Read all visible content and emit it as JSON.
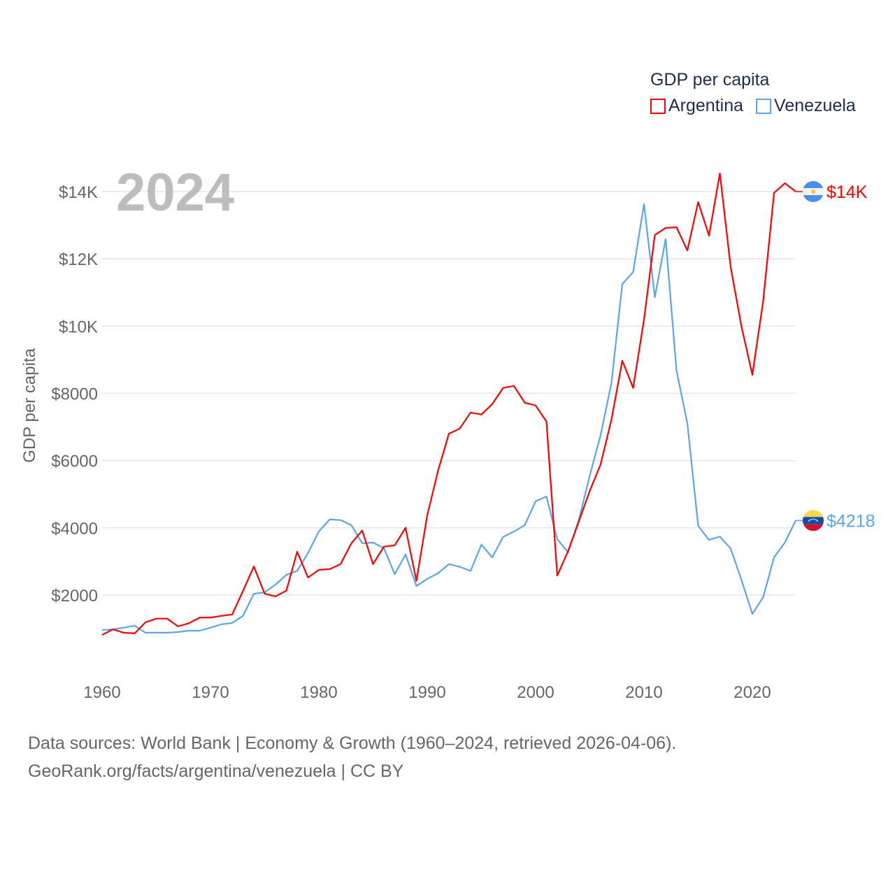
{
  "chart_data": {
    "type": "line",
    "title": "GDP per capita",
    "ylabel": "GDP per capita",
    "xlabel": "",
    "year_label": "2024",
    "ylim": [
      0,
      15000
    ],
    "xlim": [
      1960,
      2024
    ],
    "grid": true,
    "legend_placement": "top-right",
    "x_ticks": [
      1960,
      1970,
      1980,
      1990,
      2000,
      2010,
      2020
    ],
    "x_tick_labels": [
      "1960",
      "1970",
      "1980",
      "1990",
      "2000",
      "2010",
      "2020"
    ],
    "y_ticks": [
      2000,
      4000,
      6000,
      8000,
      10000,
      12000,
      14000
    ],
    "y_tick_labels": [
      "$2000",
      "$4000",
      "$6000",
      "$8000",
      "$10K",
      "$12K",
      "$14K"
    ],
    "x": [
      1960,
      1961,
      1962,
      1963,
      1964,
      1965,
      1966,
      1967,
      1968,
      1969,
      1970,
      1971,
      1972,
      1973,
      1974,
      1975,
      1976,
      1977,
      1978,
      1979,
      1980,
      1981,
      1982,
      1983,
      1984,
      1985,
      1986,
      1987,
      1988,
      1989,
      1990,
      1991,
      1992,
      1993,
      1994,
      1995,
      1996,
      1997,
      1998,
      1999,
      2000,
      2001,
      2002,
      2003,
      2004,
      2005,
      2006,
      2007,
      2008,
      2009,
      2010,
      2011,
      2012,
      2013,
      2014,
      2015,
      2016,
      2017,
      2018,
      2019,
      2020,
      2021,
      2022,
      2023,
      2024
    ],
    "series": [
      {
        "name": "Argentina",
        "color": "#ff0000",
        "end_label": "$14K",
        "flag": "argentina-flag",
        "values": [
          815,
          980,
          880,
          860,
          1190,
          1300,
          1300,
          1070,
          1160,
          1330,
          1330,
          1380,
          1420,
          2120,
          2850,
          2040,
          1960,
          2130,
          3290,
          2520,
          2750,
          2770,
          2920,
          3540,
          3920,
          2920,
          3440,
          3480,
          4000,
          2420,
          4370,
          5700,
          6800,
          6950,
          7430,
          7370,
          7680,
          8160,
          8220,
          7720,
          7640,
          7160,
          2580,
          3310,
          4200,
          5100,
          5890,
          7220,
          8970,
          8160,
          10190,
          12710,
          12920,
          12940,
          12250,
          13690,
          12690,
          14540,
          11750,
          9980,
          8550,
          10750,
          13960,
          14250,
          14000
        ]
      },
      {
        "name": "Venezuela",
        "color": "#5aa6ea",
        "end_label": "$4218",
        "flag": "venezuela-flag",
        "values": [
          960,
          980,
          1030,
          1090,
          880,
          880,
          880,
          900,
          940,
          940,
          1030,
          1130,
          1170,
          1380,
          2040,
          2080,
          2310,
          2600,
          2720,
          3250,
          3890,
          4250,
          4230,
          4080,
          3540,
          3560,
          3400,
          2620,
          3210,
          2270,
          2480,
          2650,
          2920,
          2840,
          2720,
          3500,
          3120,
          3730,
          3890,
          4080,
          4790,
          4930,
          3660,
          3270,
          4250,
          5560,
          6760,
          8320,
          11250,
          11610,
          13630,
          10860,
          12590,
          8680,
          7110,
          4060,
          3640,
          3740,
          3380,
          2440,
          1440,
          1940,
          3120,
          3560,
          4218
        ]
      }
    ]
  },
  "legend": {
    "title": "GDP per capita",
    "items": [
      "Argentina",
      "Venezuela"
    ]
  },
  "footer": {
    "line1": "Data sources: World Bank | Economy & Growth (1960–2024, retrieved 2026-04-06).",
    "line2": "GeoRank.org/facts/argentina/venezuela | CC BY"
  }
}
